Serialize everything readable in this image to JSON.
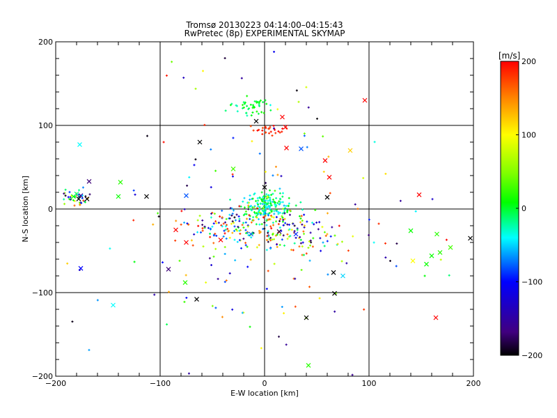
{
  "header": {
    "title_line1": "Tromsø 20130223 04:14:00–04:15:43",
    "title_line2": "RwPretec (8p) EXPERIMENTAL SKYMAP"
  },
  "chart_data": {
    "type": "scatter",
    "xlabel": "E-W location [km]",
    "ylabel": "N-S location [km]",
    "xlim": [
      -200,
      200
    ],
    "ylim": [
      -200,
      200
    ],
    "xticks": [
      -200,
      -100,
      0,
      100,
      200
    ],
    "yticks": [
      -200,
      -100,
      0,
      100,
      200
    ],
    "grid": true,
    "colorbar": {
      "label": "[m/s]",
      "range": [
        -200,
        200
      ],
      "ticks": [
        200,
        100,
        0,
        -100,
        -200
      ],
      "colors": [
        "#ff0000",
        "#ff8000",
        "#ffff00",
        "#80ff00",
        "#00ff00",
        "#00ffc0",
        "#00ffff",
        "#0000ff",
        "#400080",
        "#000000"
      ]
    },
    "markers": [
      {
        "x": -183,
        "y": 15,
        "v": 10,
        "m": "x"
      },
      {
        "x": -180,
        "y": 18,
        "v": -20,
        "m": "x"
      },
      {
        "x": -178,
        "y": 12,
        "v": -200,
        "m": "x"
      },
      {
        "x": -176,
        "y": 16,
        "v": -150,
        "m": "x"
      },
      {
        "x": -177,
        "y": 77,
        "v": -40,
        "m": "x"
      },
      {
        "x": -168,
        "y": 33,
        "v": -170,
        "m": "x"
      },
      {
        "x": -170,
        "y": 12,
        "v": -200,
        "m": "x"
      },
      {
        "x": -138,
        "y": 32,
        "v": 20,
        "m": "x"
      },
      {
        "x": -140,
        "y": 15,
        "v": 10,
        "m": "x"
      },
      {
        "x": -113,
        "y": 15,
        "v": -200,
        "m": "x"
      },
      {
        "x": -92,
        "y": -72,
        "v": -170,
        "m": "x"
      },
      {
        "x": -75,
        "y": 16,
        "v": -80,
        "m": "x"
      },
      {
        "x": -176,
        "y": -71,
        "v": -100,
        "m": "x"
      },
      {
        "x": -145,
        "y": -115,
        "v": -40,
        "m": "x"
      },
      {
        "x": -65,
        "y": -108,
        "v": -200,
        "m": "x"
      },
      {
        "x": -76,
        "y": -88,
        "v": 20,
        "m": "x"
      },
      {
        "x": -85,
        "y": -25,
        "v": 200,
        "m": "x"
      },
      {
        "x": -75,
        "y": -40,
        "v": 200,
        "m": "x"
      },
      {
        "x": -62,
        "y": 80,
        "v": -200,
        "m": "x"
      },
      {
        "x": -30,
        "y": 48,
        "v": 30,
        "m": "x"
      },
      {
        "x": -8,
        "y": 105,
        "v": -200,
        "m": "x"
      },
      {
        "x": 17,
        "y": 110,
        "v": 200,
        "m": "x"
      },
      {
        "x": 20,
        "y": 98,
        "v": 200,
        "m": "x"
      },
      {
        "x": 0,
        "y": 26,
        "v": -200,
        "m": "x"
      },
      {
        "x": 35,
        "y": 72,
        "v": -80,
        "m": "x"
      },
      {
        "x": 58,
        "y": 58,
        "v": 200,
        "m": "x"
      },
      {
        "x": 62,
        "y": 38,
        "v": 200,
        "m": "x"
      },
      {
        "x": 60,
        "y": 14,
        "v": -200,
        "m": "x"
      },
      {
        "x": 82,
        "y": 70,
        "v": 120,
        "m": "x"
      },
      {
        "x": 96,
        "y": 130,
        "v": 200,
        "m": "x"
      },
      {
        "x": 148,
        "y": 17,
        "v": 200,
        "m": "x"
      },
      {
        "x": 140,
        "y": -26,
        "v": 10,
        "m": "x"
      },
      {
        "x": 165,
        "y": -30,
        "v": 20,
        "m": "x"
      },
      {
        "x": 178,
        "y": -46,
        "v": 30,
        "m": "x"
      },
      {
        "x": 168,
        "y": -52,
        "v": 20,
        "m": "x"
      },
      {
        "x": 160,
        "y": -56,
        "v": 10,
        "m": "x"
      },
      {
        "x": 155,
        "y": -66,
        "v": 10,
        "m": "x"
      },
      {
        "x": 142,
        "y": -62,
        "v": 100,
        "m": "x"
      },
      {
        "x": 164,
        "y": -130,
        "v": 200,
        "m": "x"
      },
      {
        "x": 66,
        "y": -76,
        "v": -200,
        "m": "x"
      },
      {
        "x": 75,
        "y": -80,
        "v": -50,
        "m": "x"
      },
      {
        "x": 67,
        "y": -101,
        "v": -200,
        "m": "x"
      },
      {
        "x": 40,
        "y": -130,
        "v": -200,
        "m": "x"
      },
      {
        "x": 42,
        "y": -187,
        "v": 20,
        "m": "x"
      },
      {
        "x": 197,
        "y": -35,
        "v": -200,
        "m": "x"
      },
      {
        "x": -13,
        "y": -30,
        "v": -80,
        "m": "x"
      },
      {
        "x": 14,
        "y": -27,
        "v": -180,
        "m": "x"
      },
      {
        "x": 30,
        "y": -30,
        "v": -90,
        "m": "x"
      },
      {
        "x": -42,
        "y": -37,
        "v": 200,
        "m": "x"
      },
      {
        "x": 21,
        "y": 73,
        "v": 200,
        "m": "x"
      }
    ],
    "clusters": [
      {
        "cx": -15,
        "cy": 124,
        "sx": 10,
        "sy": 6,
        "n": 45,
        "v": [
          -30,
          20
        ]
      },
      {
        "cx": 5,
        "cy": 93,
        "sx": 8,
        "sy": 3,
        "n": 25,
        "v": [
          170,
          200
        ]
      },
      {
        "cx": 5,
        "cy": 3,
        "sx": 12,
        "sy": 8,
        "n": 170,
        "v": [
          -60,
          20
        ]
      },
      {
        "cx": -25,
        "cy": -22,
        "sx": 30,
        "sy": 12,
        "n": 170,
        "v": [
          -200,
          200
        ]
      },
      {
        "cx": 30,
        "cy": -25,
        "sx": 22,
        "sy": 12,
        "n": 90,
        "v": [
          -200,
          200
        ]
      },
      {
        "cx": -180,
        "cy": 12,
        "sx": 6,
        "sy": 6,
        "n": 40,
        "v": [
          -200,
          200
        ]
      },
      {
        "cx": 0,
        "cy": 30,
        "sx": 60,
        "sy": 80,
        "n": 90,
        "v": [
          -200,
          200
        ]
      },
      {
        "cx": -40,
        "cy": -90,
        "sx": 70,
        "sy": 45,
        "n": 50,
        "v": [
          -200,
          200
        ]
      },
      {
        "cx": 100,
        "cy": -40,
        "sx": 50,
        "sy": 40,
        "n": 25,
        "v": [
          -200,
          200
        ]
      }
    ]
  }
}
